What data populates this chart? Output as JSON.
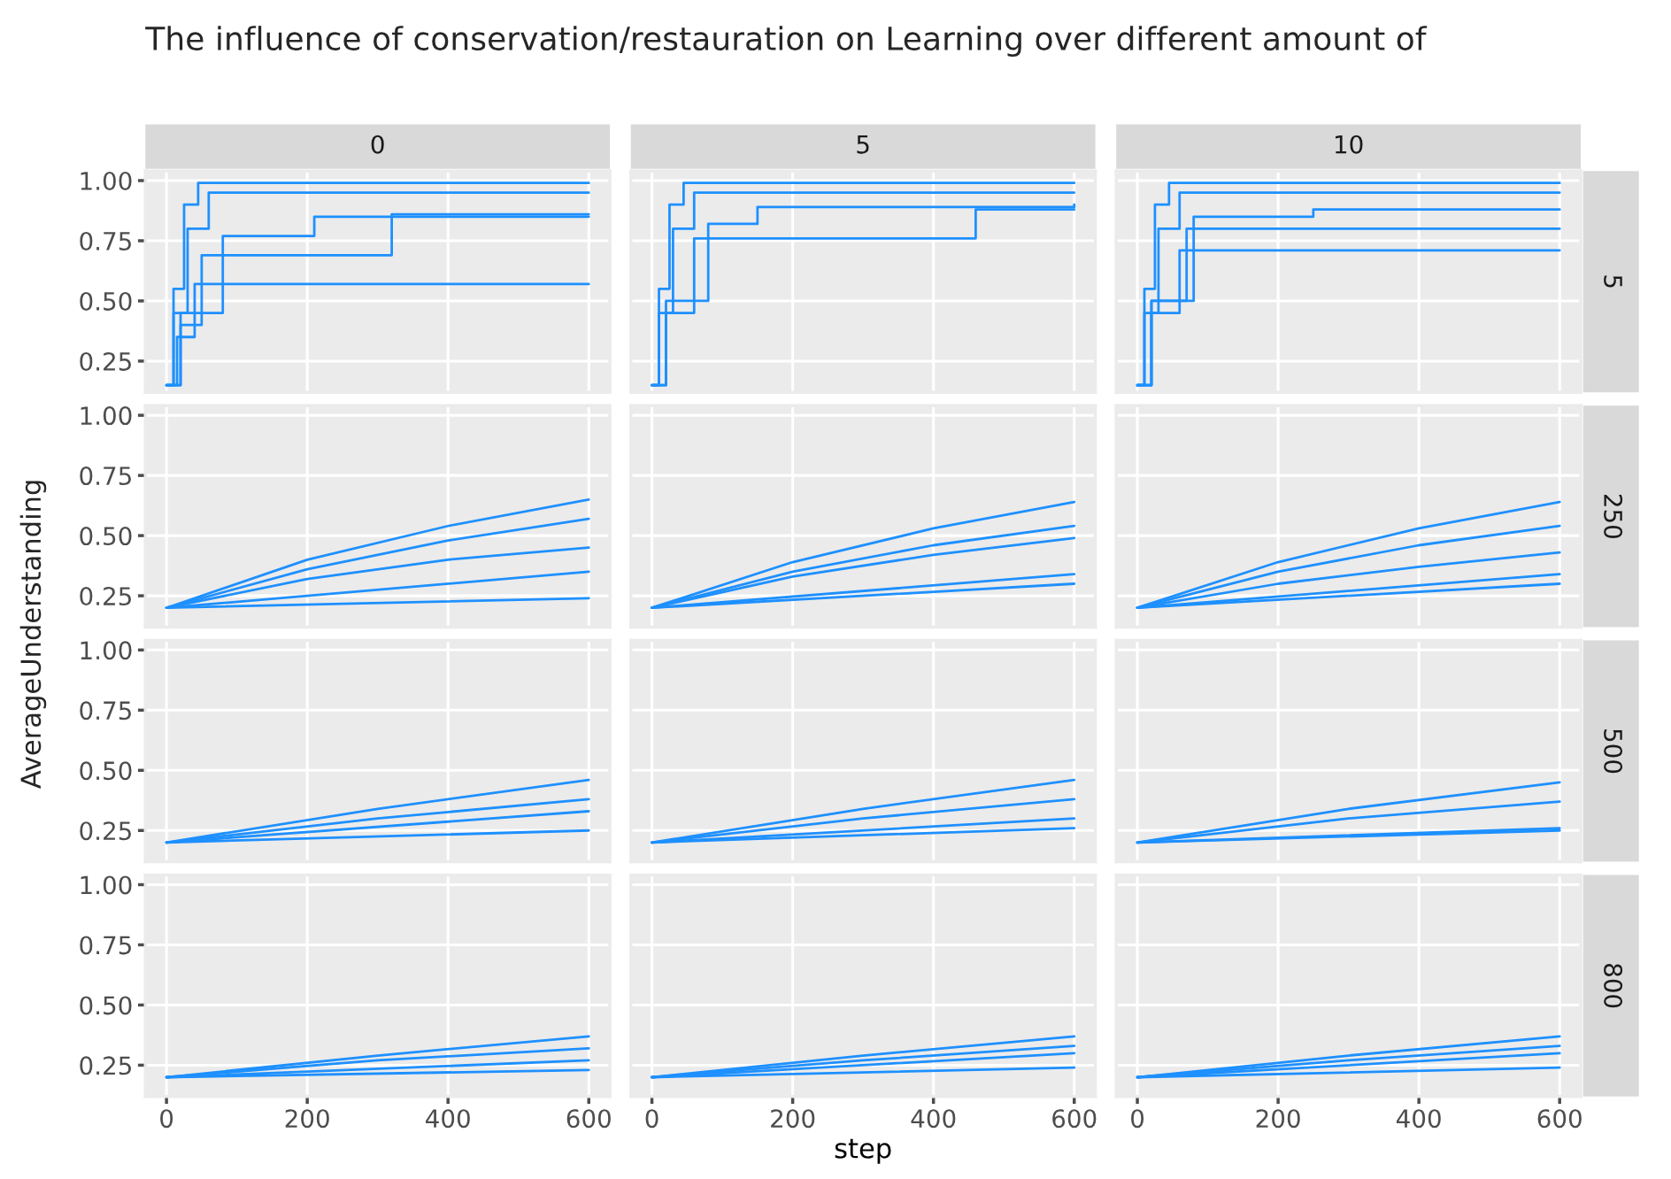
{
  "chart_data": [
    {
      "type": "step",
      "title": "0",
      "annotations": [
        "The influence of conservation/restauration on Learning over different amount of"
      ],
      "ylabel": "AverageUnderstanding",
      "xlim": [
        -30,
        630
      ],
      "ylim": [
        0.12,
        1.04
      ],
      "xticks": [
        0,
        200,
        400,
        600
      ],
      "yticks": [
        {
          "value": 0.25,
          "label": "0.25"
        },
        {
          "value": 0.5,
          "label": "0.50"
        },
        {
          "value": 0.75,
          "label": "0.75"
        },
        {
          "value": 1.0,
          "label": "1.00"
        }
      ],
      "grid": true,
      "tick_labels": "y",
      "series": [
        {
          "color": "#1e90ff",
          "x": [
            0,
            10,
            25,
            45,
            600
          ],
          "values": [
            0.15,
            0.55,
            0.9,
            0.99,
            0.99
          ]
        },
        {
          "color": "#1e90ff",
          "x": [
            0,
            10,
            30,
            60,
            600
          ],
          "values": [
            0.15,
            0.45,
            0.8,
            0.95,
            0.95
          ]
        },
        {
          "color": "#1e90ff",
          "x": [
            0,
            15,
            40,
            600
          ],
          "values": [
            0.15,
            0.35,
            0.57,
            0.57
          ]
        },
        {
          "color": "#1e90ff",
          "x": [
            0,
            20,
            50,
            310,
            320,
            600
          ],
          "values": [
            0.15,
            0.4,
            0.69,
            0.69,
            0.86,
            0.86
          ]
        },
        {
          "color": "#1e90ff",
          "x": [
            0,
            20,
            80,
            200,
            210,
            400,
            600
          ],
          "values": [
            0.15,
            0.45,
            0.77,
            0.77,
            0.85,
            0.85,
            0.85
          ]
        }
      ]
    },
    {
      "type": "step",
      "title": "5",
      "xlim": [
        -30,
        630
      ],
      "ylim": [
        0.12,
        1.04
      ],
      "xticks": [
        0,
        200,
        400,
        600
      ],
      "yticks": [
        0.25,
        0.5,
        0.75,
        1.0
      ],
      "grid": true,
      "tick_labels": false,
      "series": [
        {
          "color": "#1e90ff",
          "x": [
            0,
            10,
            25,
            45,
            600
          ],
          "values": [
            0.15,
            0.55,
            0.9,
            0.99,
            0.99
          ]
        },
        {
          "color": "#1e90ff",
          "x": [
            0,
            10,
            30,
            60,
            600
          ],
          "values": [
            0.15,
            0.45,
            0.8,
            0.95,
            0.95
          ]
        },
        {
          "color": "#1e90ff",
          "x": [
            0,
            20,
            60,
            450,
            460,
            600
          ],
          "values": [
            0.15,
            0.45,
            0.76,
            0.76,
            0.88,
            0.88
          ]
        },
        {
          "color": "#1e90ff",
          "x": [
            0,
            20,
            80,
            150,
            600
          ],
          "values": [
            0.15,
            0.5,
            0.82,
            0.89,
            0.9
          ]
        }
      ]
    },
    {
      "type": "step",
      "title": "10",
      "y2label": "5",
      "xlim": [
        -30,
        630
      ],
      "ylim": [
        0.12,
        1.04
      ],
      "xticks": [
        0,
        200,
        400,
        600
      ],
      "yticks": [
        0.25,
        0.5,
        0.75,
        1.0
      ],
      "grid": true,
      "tick_labels": false,
      "series": [
        {
          "color": "#1e90ff",
          "x": [
            0,
            10,
            25,
            45,
            600
          ],
          "values": [
            0.15,
            0.55,
            0.9,
            0.99,
            0.99
          ]
        },
        {
          "color": "#1e90ff",
          "x": [
            0,
            10,
            30,
            60,
            600
          ],
          "values": [
            0.15,
            0.45,
            0.8,
            0.95,
            0.95
          ]
        },
        {
          "color": "#1e90ff",
          "x": [
            0,
            20,
            60,
            600
          ],
          "values": [
            0.15,
            0.45,
            0.71,
            0.71
          ]
        },
        {
          "color": "#1e90ff",
          "x": [
            0,
            20,
            70,
            600
          ],
          "values": [
            0.15,
            0.5,
            0.8,
            0.8
          ]
        },
        {
          "color": "#1e90ff",
          "x": [
            0,
            20,
            80,
            250,
            600
          ],
          "values": [
            0.15,
            0.5,
            0.85,
            0.88,
            0.88
          ]
        }
      ]
    },
    {
      "type": "line",
      "xlim": [
        -30,
        630
      ],
      "ylim": [
        0.12,
        1.04
      ],
      "xticks": [
        0,
        200,
        400,
        600
      ],
      "yticks": [
        {
          "value": 0.25,
          "label": "0.25"
        },
        {
          "value": 0.5,
          "label": "0.50"
        },
        {
          "value": 0.75,
          "label": "0.75"
        },
        {
          "value": 1.0,
          "label": "1.00"
        }
      ],
      "grid": true,
      "tick_labels": "y",
      "series": [
        {
          "color": "#1e90ff",
          "x": [
            0,
            200,
            400,
            600
          ],
          "values": [
            0.2,
            0.4,
            0.54,
            0.65
          ]
        },
        {
          "color": "#1e90ff",
          "x": [
            0,
            200,
            400,
            600
          ],
          "values": [
            0.2,
            0.36,
            0.48,
            0.57
          ]
        },
        {
          "color": "#1e90ff",
          "x": [
            0,
            200,
            400,
            600
          ],
          "values": [
            0.2,
            0.32,
            0.4,
            0.45
          ]
        },
        {
          "color": "#1e90ff",
          "x": [
            0,
            600
          ],
          "values": [
            0.2,
            0.35
          ]
        },
        {
          "color": "#1e90ff",
          "x": [
            0,
            600
          ],
          "values": [
            0.2,
            0.24
          ]
        }
      ]
    },
    {
      "type": "line",
      "xlim": [
        -30,
        630
      ],
      "ylim": [
        0.12,
        1.04
      ],
      "xticks": [
        0,
        200,
        400,
        600
      ],
      "yticks": [
        0.25,
        0.5,
        0.75,
        1.0
      ],
      "grid": true,
      "tick_labels": false,
      "series": [
        {
          "color": "#1e90ff",
          "x": [
            0,
            200,
            400,
            600
          ],
          "values": [
            0.2,
            0.39,
            0.53,
            0.64
          ]
        },
        {
          "color": "#1e90ff",
          "x": [
            0,
            200,
            400,
            600
          ],
          "values": [
            0.2,
            0.35,
            0.46,
            0.54
          ]
        },
        {
          "color": "#1e90ff",
          "x": [
            0,
            200,
            400,
            600
          ],
          "values": [
            0.2,
            0.33,
            0.42,
            0.49
          ]
        },
        {
          "color": "#1e90ff",
          "x": [
            0,
            600
          ],
          "values": [
            0.2,
            0.34
          ]
        },
        {
          "color": "#1e90ff",
          "x": [
            0,
            600
          ],
          "values": [
            0.2,
            0.3
          ]
        }
      ]
    },
    {
      "type": "line",
      "y2label": "250",
      "xlim": [
        -30,
        630
      ],
      "ylim": [
        0.12,
        1.04
      ],
      "xticks": [
        0,
        200,
        400,
        600
      ],
      "yticks": [
        0.25,
        0.5,
        0.75,
        1.0
      ],
      "grid": true,
      "tick_labels": false,
      "series": [
        {
          "color": "#1e90ff",
          "x": [
            0,
            200,
            400,
            600
          ],
          "values": [
            0.2,
            0.39,
            0.53,
            0.64
          ]
        },
        {
          "color": "#1e90ff",
          "x": [
            0,
            200,
            400,
            600
          ],
          "values": [
            0.2,
            0.35,
            0.46,
            0.54
          ]
        },
        {
          "color": "#1e90ff",
          "x": [
            0,
            200,
            400,
            600
          ],
          "values": [
            0.2,
            0.3,
            0.37,
            0.43
          ]
        },
        {
          "color": "#1e90ff",
          "x": [
            0,
            600
          ],
          "values": [
            0.2,
            0.34
          ]
        },
        {
          "color": "#1e90ff",
          "x": [
            0,
            600
          ],
          "values": [
            0.2,
            0.3
          ]
        }
      ]
    },
    {
      "type": "line",
      "xlim": [
        -30,
        630
      ],
      "ylim": [
        0.12,
        1.04
      ],
      "xticks": [
        0,
        200,
        400,
        600
      ],
      "yticks": [
        {
          "value": 0.25,
          "label": "0.25"
        },
        {
          "value": 0.5,
          "label": "0.50"
        },
        {
          "value": 0.75,
          "label": "0.75"
        },
        {
          "value": 1.0,
          "label": "1.00"
        }
      ],
      "grid": true,
      "tick_labels": "y",
      "series": [
        {
          "color": "#1e90ff",
          "x": [
            0,
            300,
            600
          ],
          "values": [
            0.2,
            0.34,
            0.46
          ]
        },
        {
          "color": "#1e90ff",
          "x": [
            0,
            300,
            600
          ],
          "values": [
            0.2,
            0.3,
            0.38
          ]
        },
        {
          "color": "#1e90ff",
          "x": [
            0,
            600
          ],
          "values": [
            0.2,
            0.33
          ]
        },
        {
          "color": "#1e90ff",
          "x": [
            0,
            600
          ],
          "values": [
            0.2,
            0.25
          ]
        }
      ]
    },
    {
      "type": "line",
      "xlim": [
        -30,
        630
      ],
      "ylim": [
        0.12,
        1.04
      ],
      "xticks": [
        0,
        200,
        400,
        600
      ],
      "yticks": [
        0.25,
        0.5,
        0.75,
        1.0
      ],
      "grid": true,
      "tick_labels": false,
      "series": [
        {
          "color": "#1e90ff",
          "x": [
            0,
            300,
            600
          ],
          "values": [
            0.2,
            0.34,
            0.46
          ]
        },
        {
          "color": "#1e90ff",
          "x": [
            0,
            300,
            600
          ],
          "values": [
            0.2,
            0.3,
            0.38
          ]
        },
        {
          "color": "#1e90ff",
          "x": [
            0,
            600
          ],
          "values": [
            0.2,
            0.3
          ]
        },
        {
          "color": "#1e90ff",
          "x": [
            0,
            600
          ],
          "values": [
            0.2,
            0.26
          ]
        }
      ]
    },
    {
      "type": "line",
      "y2label": "500",
      "xlim": [
        -30,
        630
      ],
      "ylim": [
        0.12,
        1.04
      ],
      "xticks": [
        0,
        200,
        400,
        600
      ],
      "yticks": [
        0.25,
        0.5,
        0.75,
        1.0
      ],
      "grid": true,
      "tick_labels": false,
      "series": [
        {
          "color": "#1e90ff",
          "x": [
            0,
            300,
            600
          ],
          "values": [
            0.2,
            0.34,
            0.45
          ]
        },
        {
          "color": "#1e90ff",
          "x": [
            0,
            300,
            600
          ],
          "values": [
            0.2,
            0.3,
            0.37
          ]
        },
        {
          "color": "#1e90ff",
          "x": [
            0,
            600
          ],
          "values": [
            0.2,
            0.26
          ]
        },
        {
          "color": "#1e90ff",
          "x": [
            0,
            600
          ],
          "values": [
            0.2,
            0.25
          ]
        }
      ]
    },
    {
      "type": "line",
      "xlim": [
        -30,
        630
      ],
      "ylim": [
        0.12,
        1.04
      ],
      "xticks": [
        0,
        200,
        400,
        600
      ],
      "yticks": [
        {
          "value": 0.25,
          "label": "0.25"
        },
        {
          "value": 0.5,
          "label": "0.50"
        },
        {
          "value": 0.75,
          "label": "0.75"
        },
        {
          "value": 1.0,
          "label": "1.00"
        }
      ],
      "grid": true,
      "series": [
        {
          "color": "#1e90ff",
          "x": [
            0,
            300,
            600
          ],
          "values": [
            0.2,
            0.29,
            0.37
          ]
        },
        {
          "color": "#1e90ff",
          "x": [
            0,
            300,
            600
          ],
          "values": [
            0.2,
            0.27,
            0.32
          ]
        },
        {
          "color": "#1e90ff",
          "x": [
            0,
            600
          ],
          "values": [
            0.2,
            0.27
          ]
        },
        {
          "color": "#1e90ff",
          "x": [
            0,
            600
          ],
          "values": [
            0.2,
            0.23
          ]
        }
      ]
    },
    {
      "type": "line",
      "xlabel": "step",
      "xlim": [
        -30,
        630
      ],
      "ylim": [
        0.12,
        1.04
      ],
      "xticks": [
        0,
        200,
        400,
        600
      ],
      "yticks": [
        0.25,
        0.5,
        0.75,
        1.0
      ],
      "grid": true,
      "tick_labels": "x",
      "series": [
        {
          "color": "#1e90ff",
          "x": [
            0,
            300,
            600
          ],
          "values": [
            0.2,
            0.29,
            0.37
          ]
        },
        {
          "color": "#1e90ff",
          "x": [
            0,
            300,
            600
          ],
          "values": [
            0.2,
            0.27,
            0.33
          ]
        },
        {
          "color": "#1e90ff",
          "x": [
            0,
            600
          ],
          "values": [
            0.2,
            0.3
          ]
        },
        {
          "color": "#1e90ff",
          "x": [
            0,
            600
          ],
          "values": [
            0.2,
            0.24
          ]
        }
      ]
    },
    {
      "type": "line",
      "y2label": "800",
      "xlim": [
        -30,
        630
      ],
      "ylim": [
        0.12,
        1.04
      ],
      "xticks": [
        0,
        200,
        400,
        600
      ],
      "yticks": [
        0.25,
        0.5,
        0.75,
        1.0
      ],
      "grid": true,
      "tick_labels": "x",
      "series": [
        {
          "color": "#1e90ff",
          "x": [
            0,
            300,
            600
          ],
          "values": [
            0.2,
            0.29,
            0.37
          ]
        },
        {
          "color": "#1e90ff",
          "x": [
            0,
            300,
            600
          ],
          "values": [
            0.2,
            0.27,
            0.33
          ]
        },
        {
          "color": "#1e90ff",
          "x": [
            0,
            600
          ],
          "values": [
            0.2,
            0.3
          ]
        },
        {
          "color": "#1e90ff",
          "x": [
            0,
            600
          ],
          "values": [
            0.2,
            0.24
          ]
        }
      ]
    }
  ]
}
